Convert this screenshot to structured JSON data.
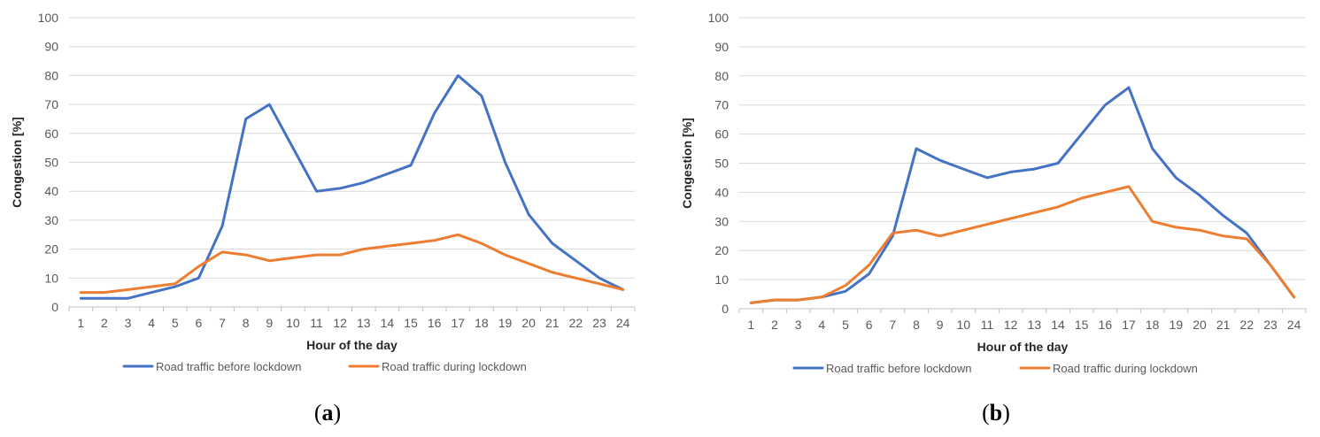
{
  "chart_data": [
    {
      "type": "line",
      "caption_open": "(",
      "caption": "a",
      "caption_close": ")",
      "xlabel": "Hour of the day",
      "ylabel": "Congestion [%]",
      "ylim": [
        0,
        100
      ],
      "yticks": [
        0,
        10,
        20,
        30,
        40,
        50,
        60,
        70,
        80,
        90,
        100
      ],
      "categories": [
        "1",
        "2",
        "3",
        "4",
        "5",
        "6",
        "7",
        "8",
        "9",
        "10",
        "11",
        "12",
        "13",
        "14",
        "15",
        "16",
        "17",
        "18",
        "19",
        "20",
        "21",
        "22",
        "23",
        "24"
      ],
      "grid": true,
      "legend_position": "bottom",
      "series": [
        {
          "name": "Road traffic before lockdown",
          "color": "#4472C4",
          "values": [
            3,
            3,
            3,
            5,
            7,
            10,
            28,
            65,
            70,
            55,
            40,
            41,
            43,
            46,
            49,
            67,
            80,
            73,
            50,
            32,
            22,
            16,
            10,
            6
          ]
        },
        {
          "name": "Road traffic during lockdown",
          "color": "#ED7D31",
          "values": [
            5,
            5,
            6,
            7,
            8,
            14,
            19,
            18,
            16,
            17,
            18,
            18,
            20,
            21,
            22,
            23,
            25,
            22,
            18,
            15,
            12,
            10,
            8,
            6
          ]
        }
      ]
    },
    {
      "type": "line",
      "caption_open": "(",
      "caption": "b",
      "caption_close": ")",
      "xlabel": "Hour of the day",
      "ylabel": "Congestion [%]",
      "ylim": [
        0,
        100
      ],
      "yticks": [
        0,
        10,
        20,
        30,
        40,
        50,
        60,
        70,
        80,
        90,
        100
      ],
      "categories": [
        "1",
        "2",
        "3",
        "4",
        "5",
        "6",
        "7",
        "8",
        "9",
        "10",
        "11",
        "12",
        "13",
        "14",
        "15",
        "16",
        "17",
        "18",
        "19",
        "20",
        "21",
        "22",
        "23",
        "24"
      ],
      "grid": true,
      "legend_position": "bottom",
      "series": [
        {
          "name": "Road traffic before lockdown",
          "color": "#4472C4",
          "values": [
            2,
            3,
            3,
            4,
            6,
            12,
            25,
            55,
            51,
            48,
            45,
            47,
            48,
            50,
            60,
            70,
            76,
            55,
            45,
            39,
            32,
            26,
            15,
            4
          ]
        },
        {
          "name": "Road traffic during lockdown",
          "color": "#ED7D31",
          "values": [
            2,
            3,
            3,
            4,
            8,
            15,
            26,
            27,
            25,
            27,
            29,
            31,
            33,
            35,
            38,
            40,
            42,
            30,
            28,
            27,
            25,
            24,
            15,
            4
          ]
        }
      ]
    }
  ]
}
